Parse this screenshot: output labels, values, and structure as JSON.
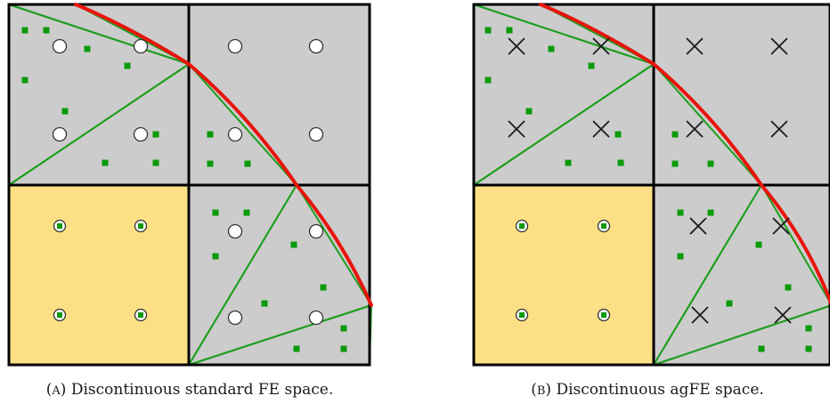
{
  "panels": [
    {
      "id": "a",
      "caption_label": "(A)",
      "caption_text": "Discontinuous standard FE space.",
      "dof_marker": "open-circle"
    },
    {
      "id": "b",
      "caption_label": "(B)",
      "caption_text": "Discontinuous agFE space.",
      "dof_marker": "cross"
    }
  ],
  "colors": {
    "cut_cell": "#cccccc",
    "interior_cell": "#fde086",
    "mesh_lines": "#000000",
    "triangulation": "#1e9e1e",
    "boundary": "#e8140c",
    "quadrature_points": "#0a9a0a"
  }
}
